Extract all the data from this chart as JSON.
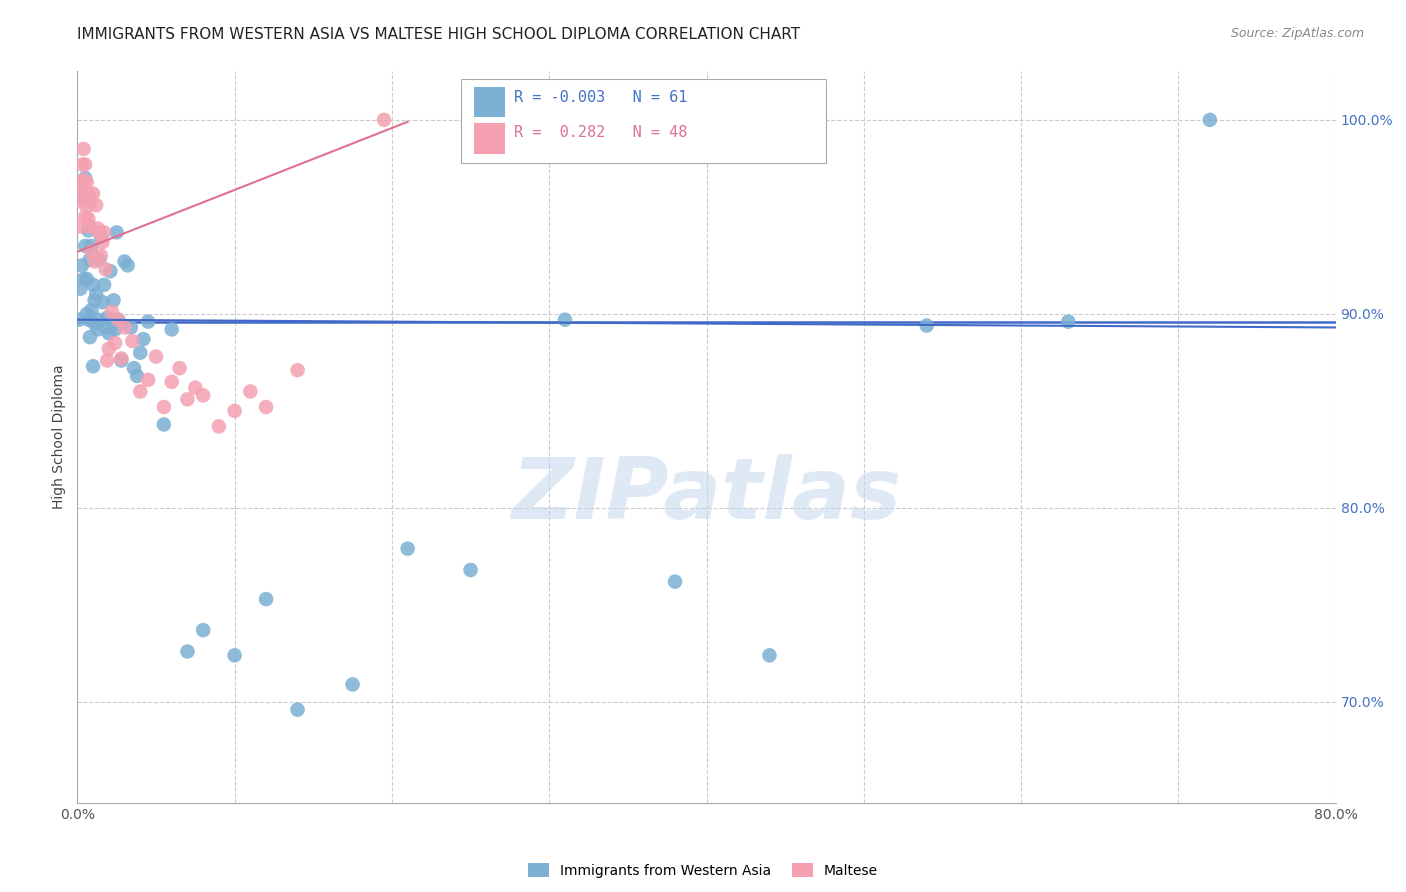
{
  "title": "IMMIGRANTS FROM WESTERN ASIA VS MALTESE HIGH SCHOOL DIPLOMA CORRELATION CHART",
  "source": "Source: ZipAtlas.com",
  "ylabel_label": "High School Diploma",
  "legend_blue_r": "-0.003",
  "legend_blue_n": "61",
  "legend_pink_r": "0.282",
  "legend_pink_n": "48",
  "legend_blue_label": "Immigrants from Western Asia",
  "legend_pink_label": "Maltese",
  "xlim": [
    0.0,
    0.8
  ],
  "ylim": [
    0.648,
    1.025
  ],
  "hline_y": 0.896,
  "hline_color": "#4169C8",
  "blue_color": "#7BAFD4",
  "pink_color": "#F4A0B0",
  "pink_line_color": "#E07090",
  "watermark": "ZIPatlas",
  "blue_trendline_x": [
    0.0,
    0.8
  ],
  "blue_trendline_y": [
    0.897,
    0.893
  ],
  "pink_trendline_x": [
    0.0,
    0.21
  ],
  "pink_trendline_y": [
    0.932,
    0.999
  ],
  "blue_scatter_x": [
    0.001,
    0.002,
    0.003,
    0.003,
    0.004,
    0.005,
    0.005,
    0.006,
    0.006,
    0.007,
    0.007,
    0.008,
    0.008,
    0.009,
    0.009,
    0.01,
    0.01,
    0.011,
    0.011,
    0.012,
    0.013,
    0.013,
    0.014,
    0.015,
    0.016,
    0.017,
    0.018,
    0.019,
    0.02,
    0.021,
    0.022,
    0.023,
    0.024,
    0.025,
    0.026,
    0.027,
    0.028,
    0.03,
    0.032,
    0.034,
    0.036,
    0.038,
    0.04,
    0.042,
    0.045,
    0.055,
    0.06,
    0.07,
    0.08,
    0.1,
    0.12,
    0.14,
    0.175,
    0.21,
    0.25,
    0.31,
    0.38,
    0.44,
    0.54,
    0.63,
    0.72
  ],
  "blue_scatter_y": [
    0.897,
    0.913,
    0.925,
    0.96,
    0.918,
    0.935,
    0.97,
    0.9,
    0.918,
    0.943,
    0.897,
    0.888,
    0.928,
    0.935,
    0.902,
    0.873,
    0.915,
    0.895,
    0.907,
    0.91,
    0.897,
    0.892,
    0.928,
    0.94,
    0.906,
    0.915,
    0.893,
    0.898,
    0.89,
    0.922,
    0.896,
    0.907,
    0.892,
    0.942,
    0.897,
    0.895,
    0.876,
    0.927,
    0.925,
    0.893,
    0.872,
    0.868,
    0.88,
    0.887,
    0.896,
    0.843,
    0.892,
    0.726,
    0.737,
    0.724,
    0.753,
    0.696,
    0.709,
    0.779,
    0.768,
    0.897,
    0.762,
    0.724,
    0.894,
    0.896,
    1.0
  ],
  "pink_scatter_x": [
    0.001,
    0.002,
    0.002,
    0.003,
    0.003,
    0.004,
    0.004,
    0.005,
    0.005,
    0.006,
    0.006,
    0.007,
    0.007,
    0.008,
    0.008,
    0.009,
    0.01,
    0.011,
    0.012,
    0.013,
    0.014,
    0.015,
    0.016,
    0.017,
    0.018,
    0.019,
    0.02,
    0.022,
    0.024,
    0.026,
    0.028,
    0.03,
    0.035,
    0.04,
    0.045,
    0.05,
    0.055,
    0.06,
    0.065,
    0.07,
    0.075,
    0.08,
    0.09,
    0.1,
    0.11,
    0.12,
    0.14,
    0.195
  ],
  "pink_scatter_y": [
    0.967,
    0.945,
    0.958,
    0.963,
    0.977,
    0.969,
    0.985,
    0.95,
    0.977,
    0.955,
    0.968,
    0.949,
    0.962,
    0.945,
    0.958,
    0.932,
    0.962,
    0.927,
    0.956,
    0.944,
    0.942,
    0.93,
    0.937,
    0.942,
    0.923,
    0.876,
    0.882,
    0.901,
    0.885,
    0.897,
    0.877,
    0.893,
    0.886,
    0.86,
    0.866,
    0.878,
    0.852,
    0.865,
    0.872,
    0.856,
    0.862,
    0.858,
    0.842,
    0.85,
    0.86,
    0.852,
    0.871,
    1.0
  ],
  "ytick_positions": [
    0.7,
    0.8,
    0.9,
    1.0
  ],
  "ytick_labels": [
    "70.0%",
    "80.0%",
    "90.0%",
    "100.0%"
  ],
  "xtick_positions": [
    0.0,
    0.1,
    0.2,
    0.3,
    0.4,
    0.5,
    0.6,
    0.7,
    0.8
  ],
  "xtick_labels": [
    "0.0%",
    "",
    "",
    "",
    "",
    "",
    "",
    "",
    "80.0%"
  ],
  "grid_color": "#CCCCCC",
  "tick_color": "#4472C4",
  "title_fontsize": 11,
  "source_fontsize": 9,
  "background_color": "#FFFFFF"
}
